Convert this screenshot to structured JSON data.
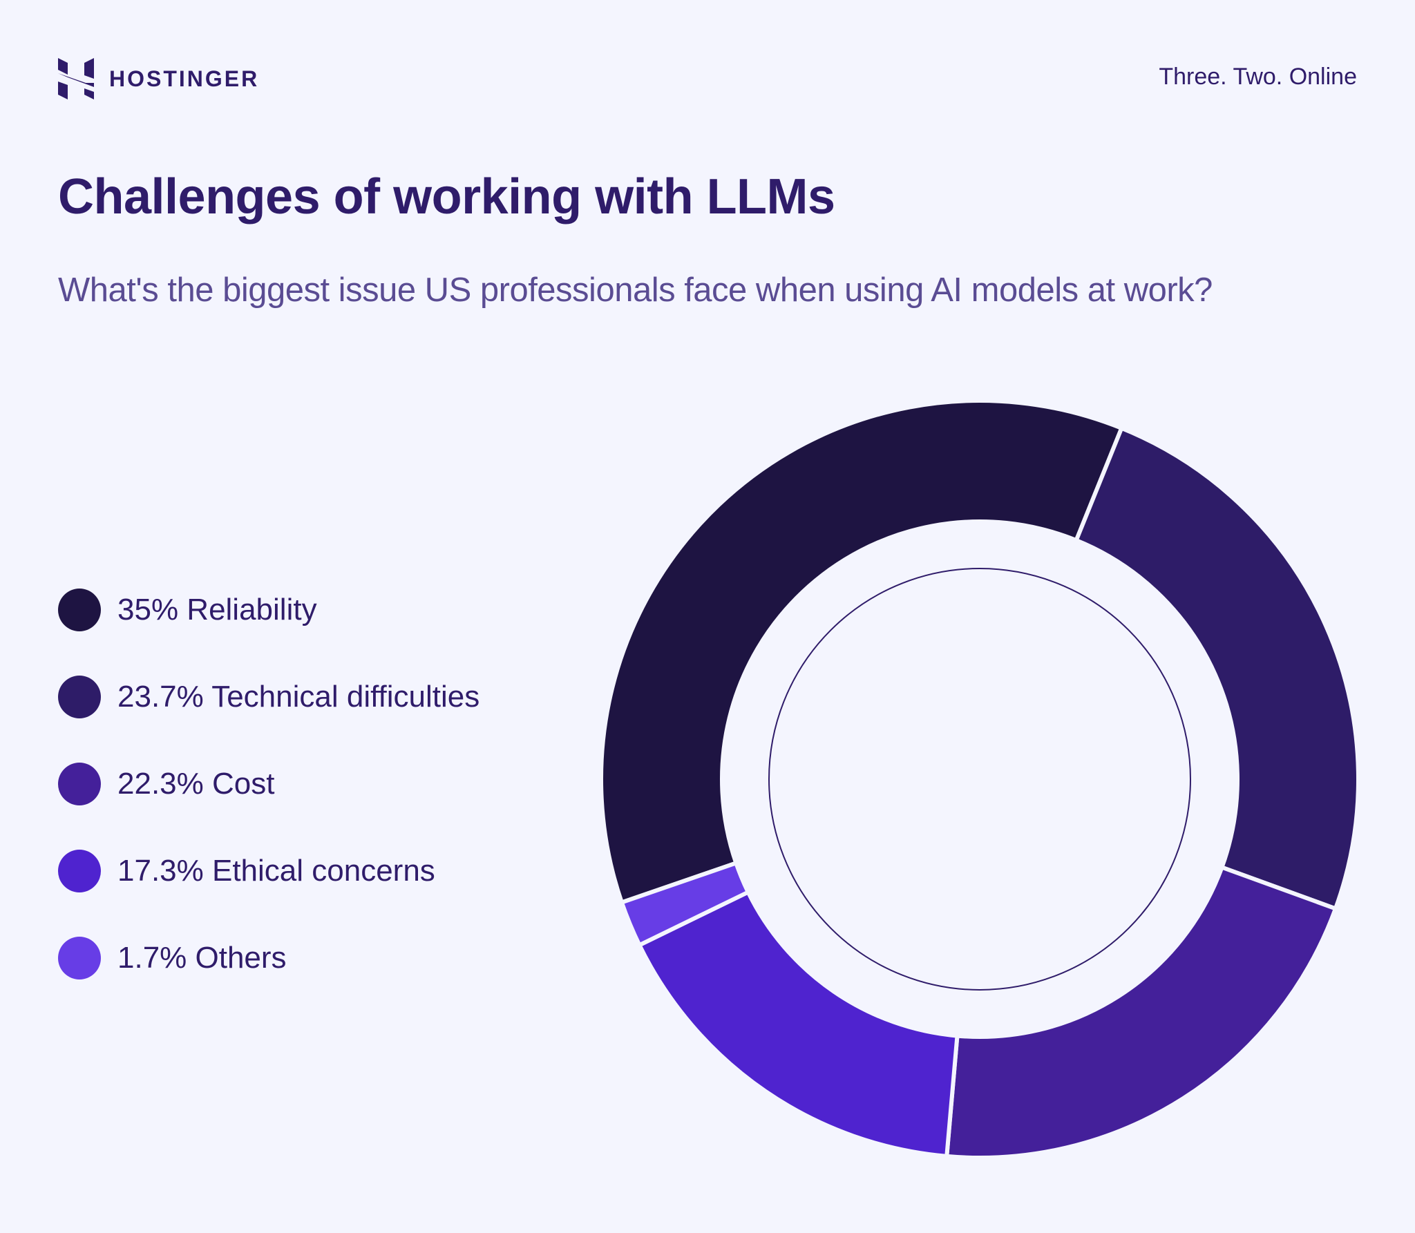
{
  "brand": {
    "name": "HOSTINGER",
    "logo_icon": "hostinger-h-logo-icon",
    "tagline": "Three. Two. Online"
  },
  "header": {
    "title": "Challenges of working with LLMs",
    "subtitle": "What's the biggest issue US professionals face when using AI models at work?"
  },
  "colors": {
    "background": "#F4F5FE",
    "text_primary": "#2F1C6A",
    "text_secondary": "#5A4C93",
    "gap": "#F4F5FE",
    "inner_ring_stroke": "#2F1C6A"
  },
  "legend": {
    "items": [
      {
        "label": "35% Reliability",
        "color": "#1E1442"
      },
      {
        "label": "23.7% Technical difficulties",
        "color": "#2E1C68"
      },
      {
        "label": "22.3% Cost",
        "color": "#44209A"
      },
      {
        "label": "17.3% Ethical concerns",
        "color": "#4F23CF"
      },
      {
        "label": "1.7% Others",
        "color": "#673DE6"
      }
    ]
  },
  "chart_data": {
    "type": "pie",
    "variant": "donut",
    "title": "Challenges of working with LLMs",
    "subtitle": "What's the biggest issue US professionals face when using AI models at work?",
    "categories": [
      "Reliability",
      "Technical difficulties",
      "Cost",
      "Ethical concerns",
      "Others"
    ],
    "values": [
      35,
      23.7,
      22.3,
      17.3,
      1.7
    ],
    "unit": "%",
    "colors": [
      "#1E1442",
      "#2E1C68",
      "#44209A",
      "#4F23CF",
      "#673DE6"
    ],
    "legend_position": "left",
    "geometry": {
      "center": [
        1418,
        1128
      ],
      "outer_radius": 548,
      "inner_radius": 373,
      "inner_circle_radius": 305,
      "segment_angles_deg": [
        {
          "name": "Reliability",
          "start": 251,
          "end": 382
        },
        {
          "name": "Technical difficulties",
          "start": 22,
          "end": 110
        },
        {
          "name": "Cost",
          "start": 110,
          "end": 185
        },
        {
          "name": "Ethical concerns",
          "start": 185,
          "end": 244
        },
        {
          "name": "Others",
          "start": 244,
          "end": 251
        }
      ]
    }
  }
}
